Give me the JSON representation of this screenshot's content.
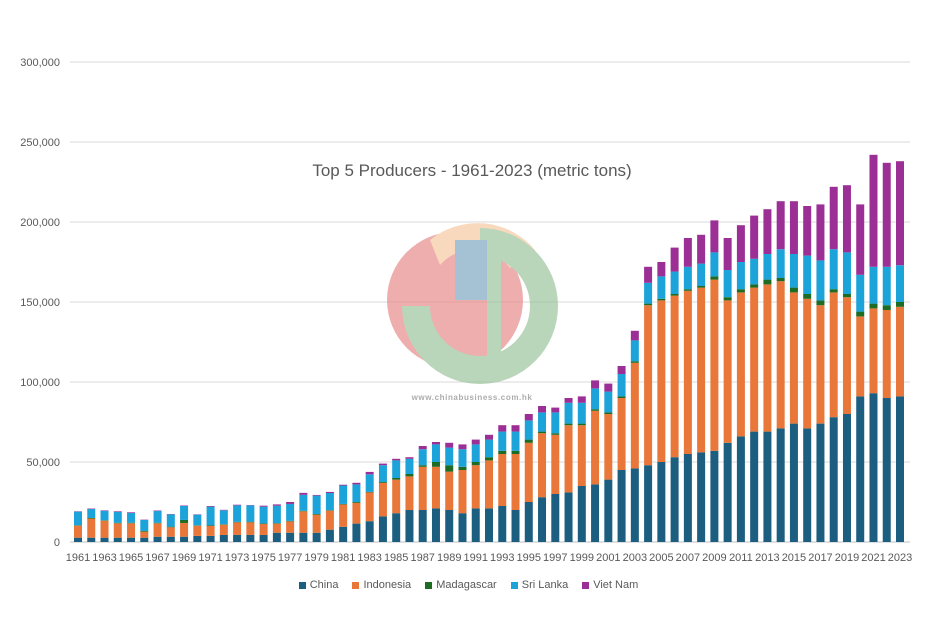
{
  "chart_data": {
    "type": "bar",
    "stacked": true,
    "title": "Top 5 Producers - 1961-2023 (metric tons)",
    "xlabel": "",
    "ylabel": "",
    "ylim": [
      0,
      300000
    ],
    "yticks": [
      0,
      50000,
      100000,
      150000,
      200000,
      250000,
      300000
    ],
    "ytick_labels": [
      "0",
      "50,000",
      "100,000",
      "150,000",
      "200,000",
      "250,000",
      "300,000"
    ],
    "grid": true,
    "legend_position": "bottom",
    "categories": [
      "1961",
      "1962",
      "1963",
      "1964",
      "1965",
      "1966",
      "1967",
      "1968",
      "1969",
      "1970",
      "1971",
      "1972",
      "1973",
      "1974",
      "1975",
      "1976",
      "1977",
      "1978",
      "1979",
      "1980",
      "1981",
      "1982",
      "1983",
      "1984",
      "1985",
      "1986",
      "1987",
      "1988",
      "1989",
      "1990",
      "1991",
      "1992",
      "1993",
      "1994",
      "1995",
      "1996",
      "1997",
      "1998",
      "1999",
      "2000",
      "2001",
      "2002",
      "2003",
      "2004",
      "2005",
      "2006",
      "2007",
      "2008",
      "2009",
      "2010",
      "2011",
      "2012",
      "2013",
      "2014",
      "2015",
      "2016",
      "2017",
      "2018",
      "2019",
      "2020",
      "2021",
      "2022",
      "2023"
    ],
    "series": [
      {
        "name": "China",
        "color": "#1b5e80",
        "values": [
          2700,
          2700,
          2700,
          2700,
          2700,
          2700,
          3300,
          3300,
          3300,
          3800,
          3800,
          4400,
          4400,
          4400,
          4400,
          5800,
          5800,
          5800,
          5800,
          7700,
          9500,
          11500,
          13000,
          16000,
          18000,
          20000,
          20000,
          21000,
          20000,
          18000,
          21000,
          21000,
          22500,
          20000,
          25000,
          28000,
          30000,
          31000,
          35000,
          36000,
          39000,
          45000,
          46000,
          48000,
          50000,
          53000,
          55000,
          56000,
          57000,
          62000,
          66000,
          69000,
          69000,
          71000,
          74000,
          71000,
          74000,
          78000,
          80000,
          91000,
          93000,
          90000,
          91000
        ]
      },
      {
        "name": "Indonesia",
        "color": "#e9773a",
        "values": [
          7500,
          12000,
          10600,
          9000,
          9000,
          3800,
          8400,
          5900,
          8600,
          6400,
          6200,
          6400,
          7900,
          7900,
          6900,
          5700,
          7100,
          13400,
          11300,
          11900,
          14000,
          13000,
          18000,
          21000,
          21000,
          21000,
          27000,
          26000,
          24000,
          27000,
          27000,
          30000,
          32500,
          35000,
          37000,
          40000,
          37000,
          42000,
          38000,
          46000,
          41000,
          45000,
          66000,
          100000,
          101000,
          101000,
          102000,
          103000,
          107000,
          89000,
          90000,
          90000,
          92000,
          92000,
          82000,
          81000,
          74000,
          78000,
          73000,
          50000,
          53000,
          55000,
          56000
        ]
      },
      {
        "name": "Madagascar",
        "color": "#1e6b24",
        "values": [
          300,
          300,
          300,
          300,
          300,
          400,
          300,
          400,
          1900,
          200,
          400,
          300,
          300,
          400,
          300,
          300,
          300,
          300,
          400,
          300,
          300,
          500,
          300,
          500,
          1000,
          1500,
          1000,
          3000,
          4000,
          2000,
          2000,
          2000,
          2000,
          2000,
          2000,
          1000,
          1000,
          1000,
          1000,
          1000,
          1000,
          1000,
          1000,
          1000,
          1000,
          1000,
          1000,
          1000,
          2000,
          2000,
          2000,
          2000,
          3000,
          2000,
          3000,
          3000,
          3000,
          2000,
          2000,
          3000,
          3000,
          3000,
          3000
        ]
      },
      {
        "name": "Sri Lanka",
        "color": "#1ca3d9",
        "values": [
          8500,
          5600,
          5900,
          6800,
          6200,
          6900,
          7400,
          7700,
          8700,
          6700,
          11700,
          8700,
          10300,
          10200,
          10500,
          10900,
          10600,
          10000,
          11500,
          10700,
          11500,
          11000,
          11000,
          10500,
          11000,
          9500,
          10000,
          11000,
          11000,
          11000,
          11000,
          11000,
          12000,
          12000,
          12000,
          12000,
          13000,
          13000,
          13000,
          13000,
          13000,
          14000,
          13000,
          13000,
          14000,
          14000,
          14000,
          14000,
          15000,
          17000,
          17000,
          16000,
          16000,
          18000,
          21000,
          24000,
          25000,
          25000,
          26000,
          23000,
          23000,
          24000,
          23000
        ]
      },
      {
        "name": "Viet Nam",
        "color": "#9c2f95",
        "values": [
          200,
          300,
          300,
          400,
          400,
          200,
          300,
          200,
          300,
          200,
          400,
          300,
          400,
          200,
          600,
          800,
          1200,
          1200,
          400,
          700,
          500,
          1000,
          1500,
          1000,
          1000,
          1000,
          2000,
          1500,
          3000,
          3000,
          3000,
          3000,
          4000,
          4000,
          4000,
          4000,
          3000,
          3000,
          4000,
          5000,
          5000,
          5000,
          6000,
          10000,
          9000,
          15000,
          18000,
          18000,
          20000,
          20000,
          23000,
          27000,
          28000,
          30000,
          33000,
          31000,
          35000,
          39000,
          42000,
          44000,
          70000,
          65000,
          65000
        ]
      }
    ]
  },
  "watermark": {
    "text": "www.chinabusiness.com.hk"
  }
}
